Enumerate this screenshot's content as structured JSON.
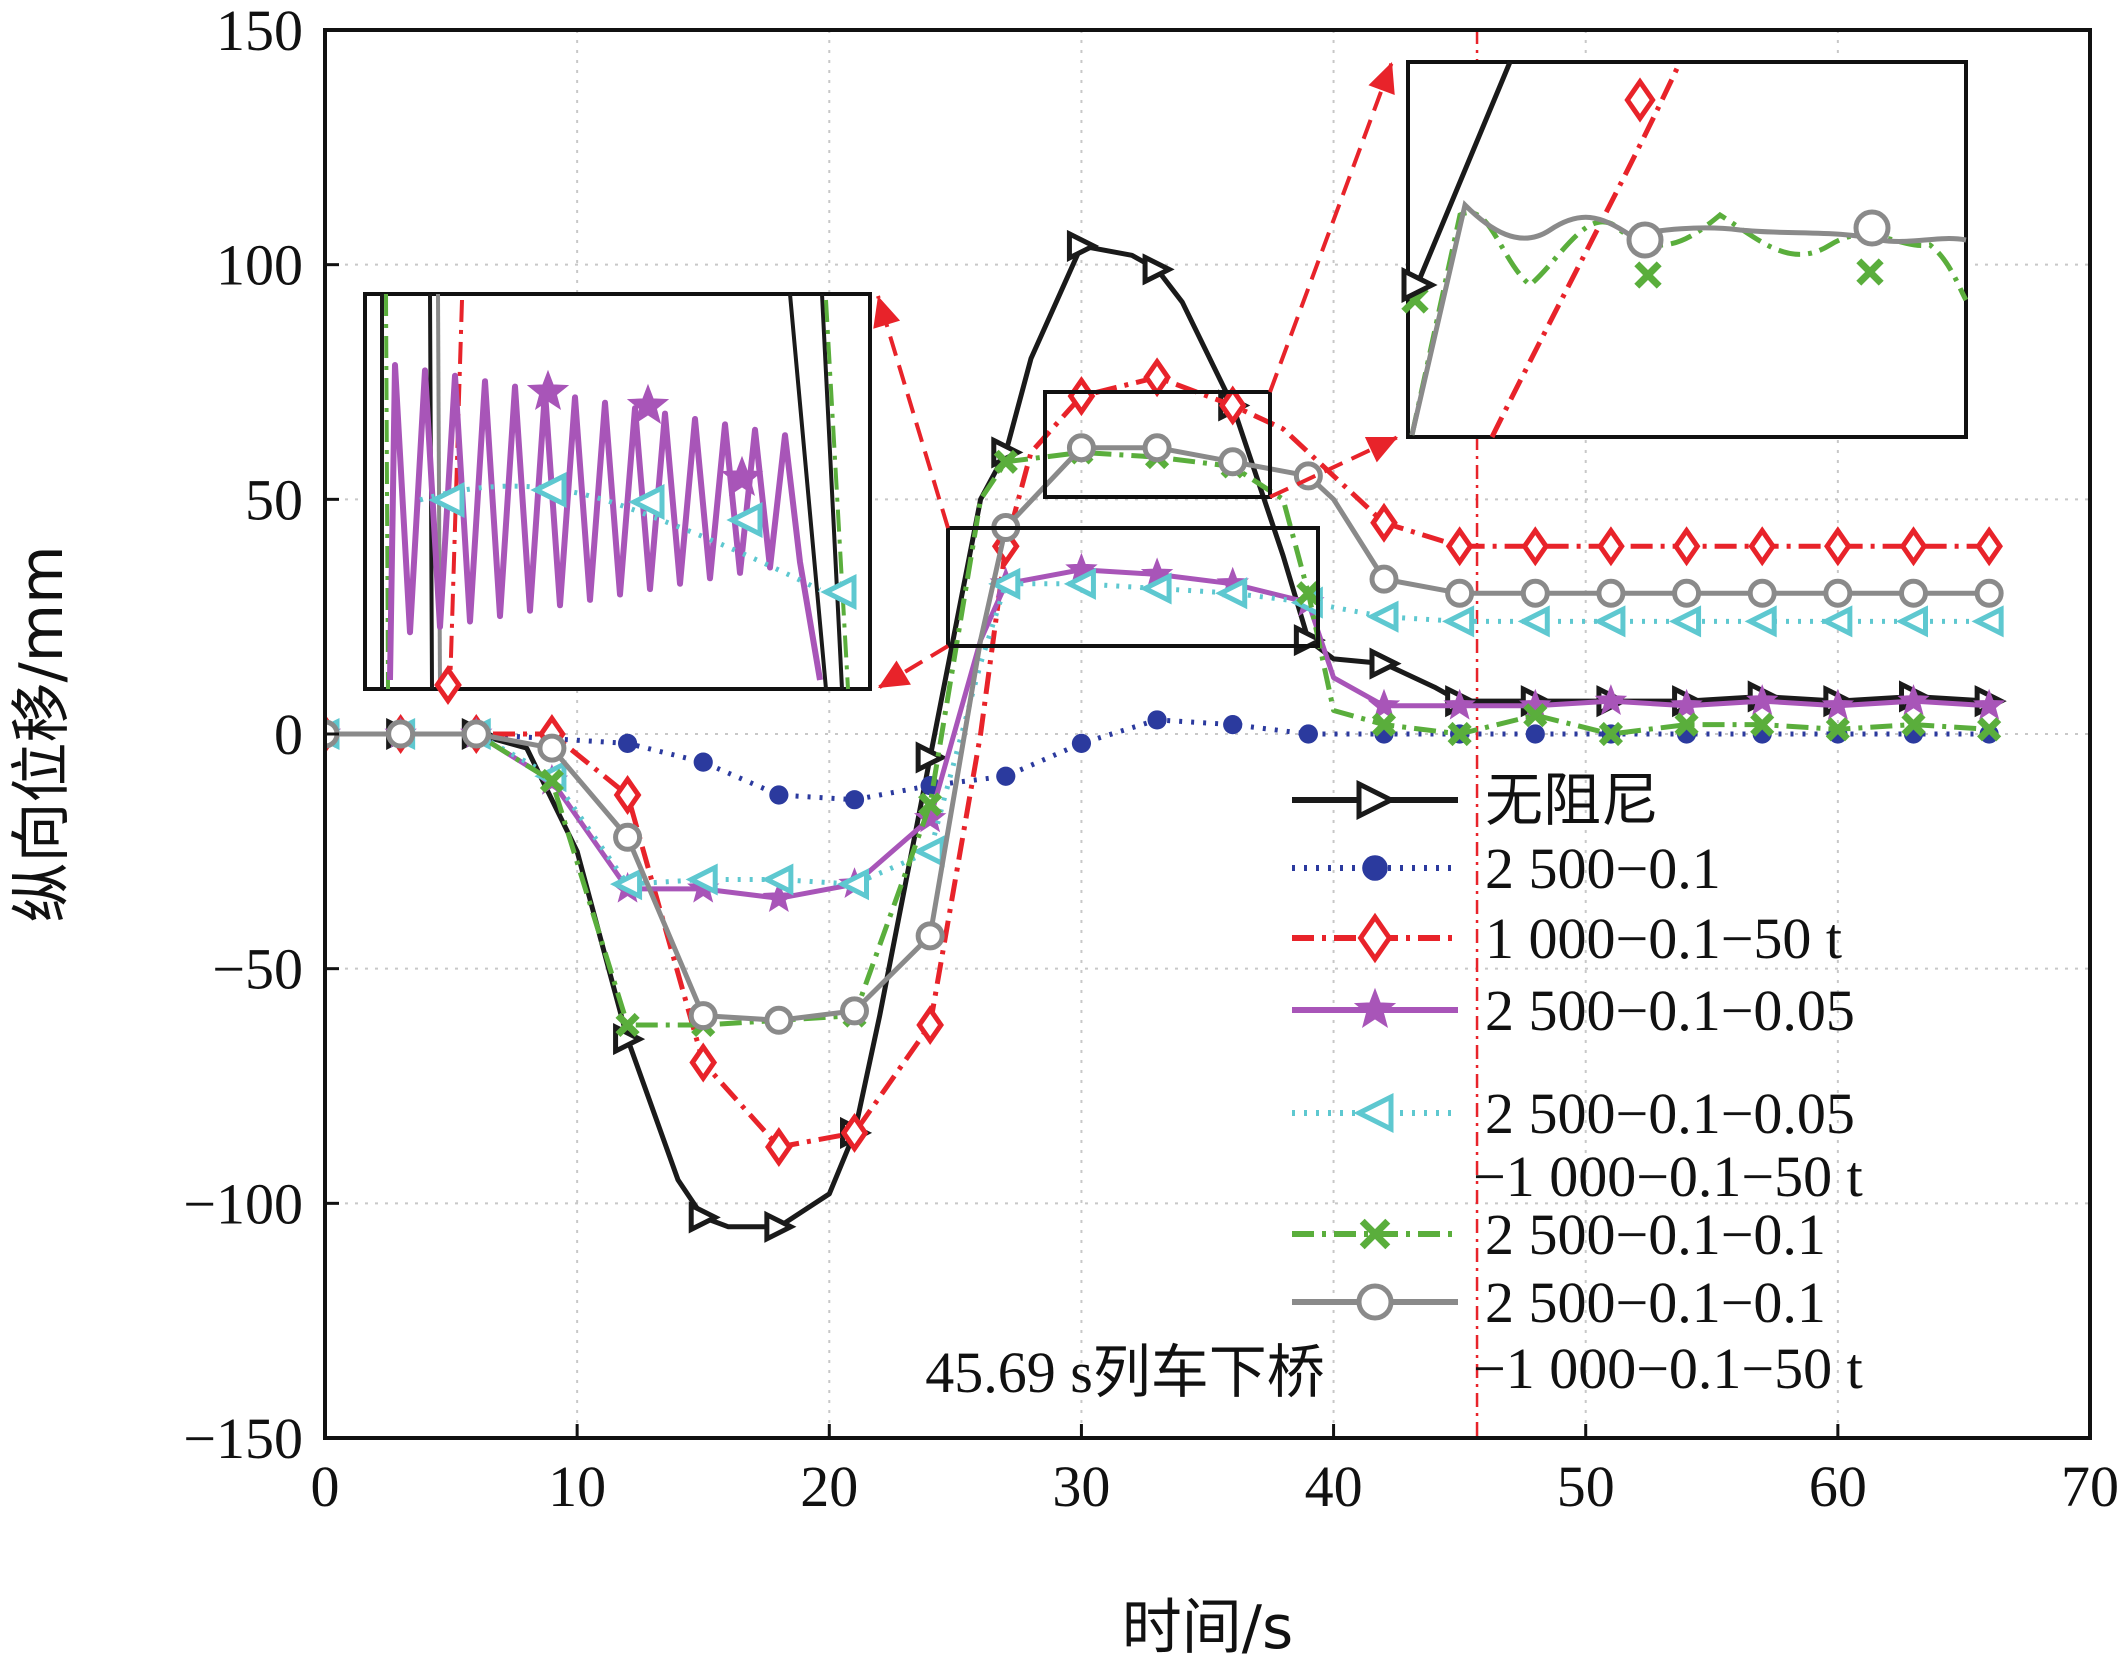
{
  "chart_data": {
    "type": "line",
    "title": "",
    "xlabel": "时间/s",
    "ylabel": "纵向位移/mm",
    "xlim": [
      0,
      70
    ],
    "ylim": [
      -150,
      150
    ],
    "x_ticks": [
      0,
      10,
      20,
      30,
      40,
      50,
      60,
      70
    ],
    "y_ticks": [
      -150,
      -100,
      -50,
      0,
      50,
      100,
      150
    ],
    "x_tick_labels": [
      "0",
      "10",
      "20",
      "30",
      "40",
      "50",
      "60",
      "70"
    ],
    "y_tick_labels": [
      "−150",
      "−100",
      "−50",
      "0",
      "50",
      "100",
      "150"
    ],
    "grid": true,
    "legend_position": "bottom-right",
    "annotation": {
      "text": "45.69 s列车下桥",
      "x": 45.69
    },
    "series": [
      {
        "name": "无阻尼",
        "color": "#1a1a1a",
        "marker": "triangle-right",
        "dash": "solid",
        "x": [
          0,
          3,
          6,
          8,
          10,
          12,
          14,
          15,
          16,
          18,
          20,
          21,
          22,
          24,
          26,
          27,
          28,
          30,
          32,
          33,
          34,
          36,
          38,
          39,
          40,
          42,
          44,
          45,
          48,
          51,
          54,
          57,
          60,
          63,
          66
        ],
        "y": [
          0,
          0,
          0,
          -3,
          -25,
          -65,
          -95,
          -103,
          -105,
          -105,
          -98,
          -85,
          -60,
          -5,
          50,
          60,
          80,
          104,
          102,
          99,
          92,
          70,
          38,
          20,
          16,
          15,
          10,
          7,
          7,
          7,
          7,
          8,
          7,
          8,
          7
        ]
      },
      {
        "name": "2 500−0.1",
        "color": "#2b3a9e",
        "marker": "dot",
        "dash": "dotted",
        "x": [
          0,
          3,
          6,
          9,
          12,
          15,
          18,
          21,
          24,
          27,
          30,
          33,
          36,
          39,
          42,
          45,
          48,
          51,
          54,
          57,
          60,
          63,
          66
        ],
        "y": [
          0,
          0,
          0,
          -1,
          -2,
          -6,
          -13,
          -14,
          -11,
          -9,
          -2,
          3,
          2,
          0,
          0,
          0,
          0,
          0,
          0,
          0,
          0,
          0,
          0
        ]
      },
      {
        "name": "1 000−0.1−50 t",
        "color": "#e8232a",
        "marker": "diamond",
        "dash": "dashdot",
        "x": [
          0,
          3,
          6,
          9,
          12,
          15,
          18,
          21,
          24,
          26,
          27,
          28,
          30,
          33,
          36,
          38,
          40,
          42,
          45,
          48,
          51,
          54,
          57,
          60,
          63,
          66
        ],
        "y": [
          0,
          0,
          0,
          0,
          -13,
          -70,
          -88,
          -85,
          -62,
          0,
          40,
          60,
          72,
          76,
          70,
          65,
          55,
          45,
          40,
          40,
          40,
          40,
          40,
          40,
          40,
          40
        ]
      },
      {
        "name": "2 500−0.1−0.05",
        "color": "#a855b8",
        "marker": "star",
        "dash": "solid",
        "x": [
          0,
          3,
          6,
          9,
          12,
          15,
          18,
          21,
          24,
          26,
          27,
          30,
          33,
          36,
          39,
          40,
          42,
          45,
          48,
          51,
          54,
          57,
          60,
          63,
          66
        ],
        "y": [
          0,
          0,
          0,
          -10,
          -33,
          -33,
          -35,
          -32,
          -18,
          20,
          32,
          35,
          34,
          32,
          28,
          12,
          6,
          6,
          6,
          7,
          6,
          7,
          6,
          7,
          6
        ]
      },
      {
        "name": "2 500−0.1−0.05\n−1 000−0.1−50 t",
        "color": "#5ec8d0",
        "marker": "triangle-left",
        "dash": "dotted",
        "x": [
          0,
          3,
          6,
          9,
          12,
          15,
          18,
          21,
          24,
          26,
          27,
          30,
          33,
          36,
          39,
          40,
          42,
          45,
          48,
          51,
          54,
          57,
          60,
          63,
          66
        ],
        "y": [
          0,
          0,
          0,
          -9,
          -32,
          -31,
          -31,
          -32,
          -25,
          15,
          32,
          32,
          31,
          30,
          28,
          27,
          25,
          24,
          24,
          24,
          24,
          24,
          24,
          24,
          24
        ]
      },
      {
        "name": "2 500−0.1−0.1",
        "color": "#5aae3c",
        "marker": "x",
        "dash": "dashdot",
        "x": [
          0,
          3,
          6,
          9,
          12,
          15,
          18,
          21,
          24,
          26,
          27,
          30,
          33,
          36,
          38,
          39,
          40,
          42,
          45,
          48,
          51,
          54,
          57,
          60,
          63,
          66
        ],
        "y": [
          0,
          0,
          0,
          -10,
          -62,
          -62,
          -61,
          -60,
          -15,
          50,
          58,
          60,
          59,
          57,
          50,
          30,
          5,
          2,
          0,
          4,
          0,
          2,
          2,
          1,
          2,
          1
        ]
      },
      {
        "name": "2 500−0.1−0.1\n−1 000−0.1−50 t",
        "color": "#8a8a8a",
        "marker": "circle",
        "dash": "solid",
        "x": [
          0,
          3,
          6,
          9,
          12,
          15,
          18,
          21,
          24,
          26,
          27,
          30,
          33,
          36,
          39,
          40,
          42,
          45,
          48,
          51,
          54,
          57,
          60,
          63,
          66
        ],
        "y": [
          0,
          0,
          0,
          -3,
          -22,
          -60,
          -61,
          -59,
          -43,
          20,
          44,
          61,
          61,
          58,
          55,
          50,
          33,
          30,
          30,
          30,
          30,
          30,
          30,
          30,
          30
        ]
      }
    ]
  }
}
